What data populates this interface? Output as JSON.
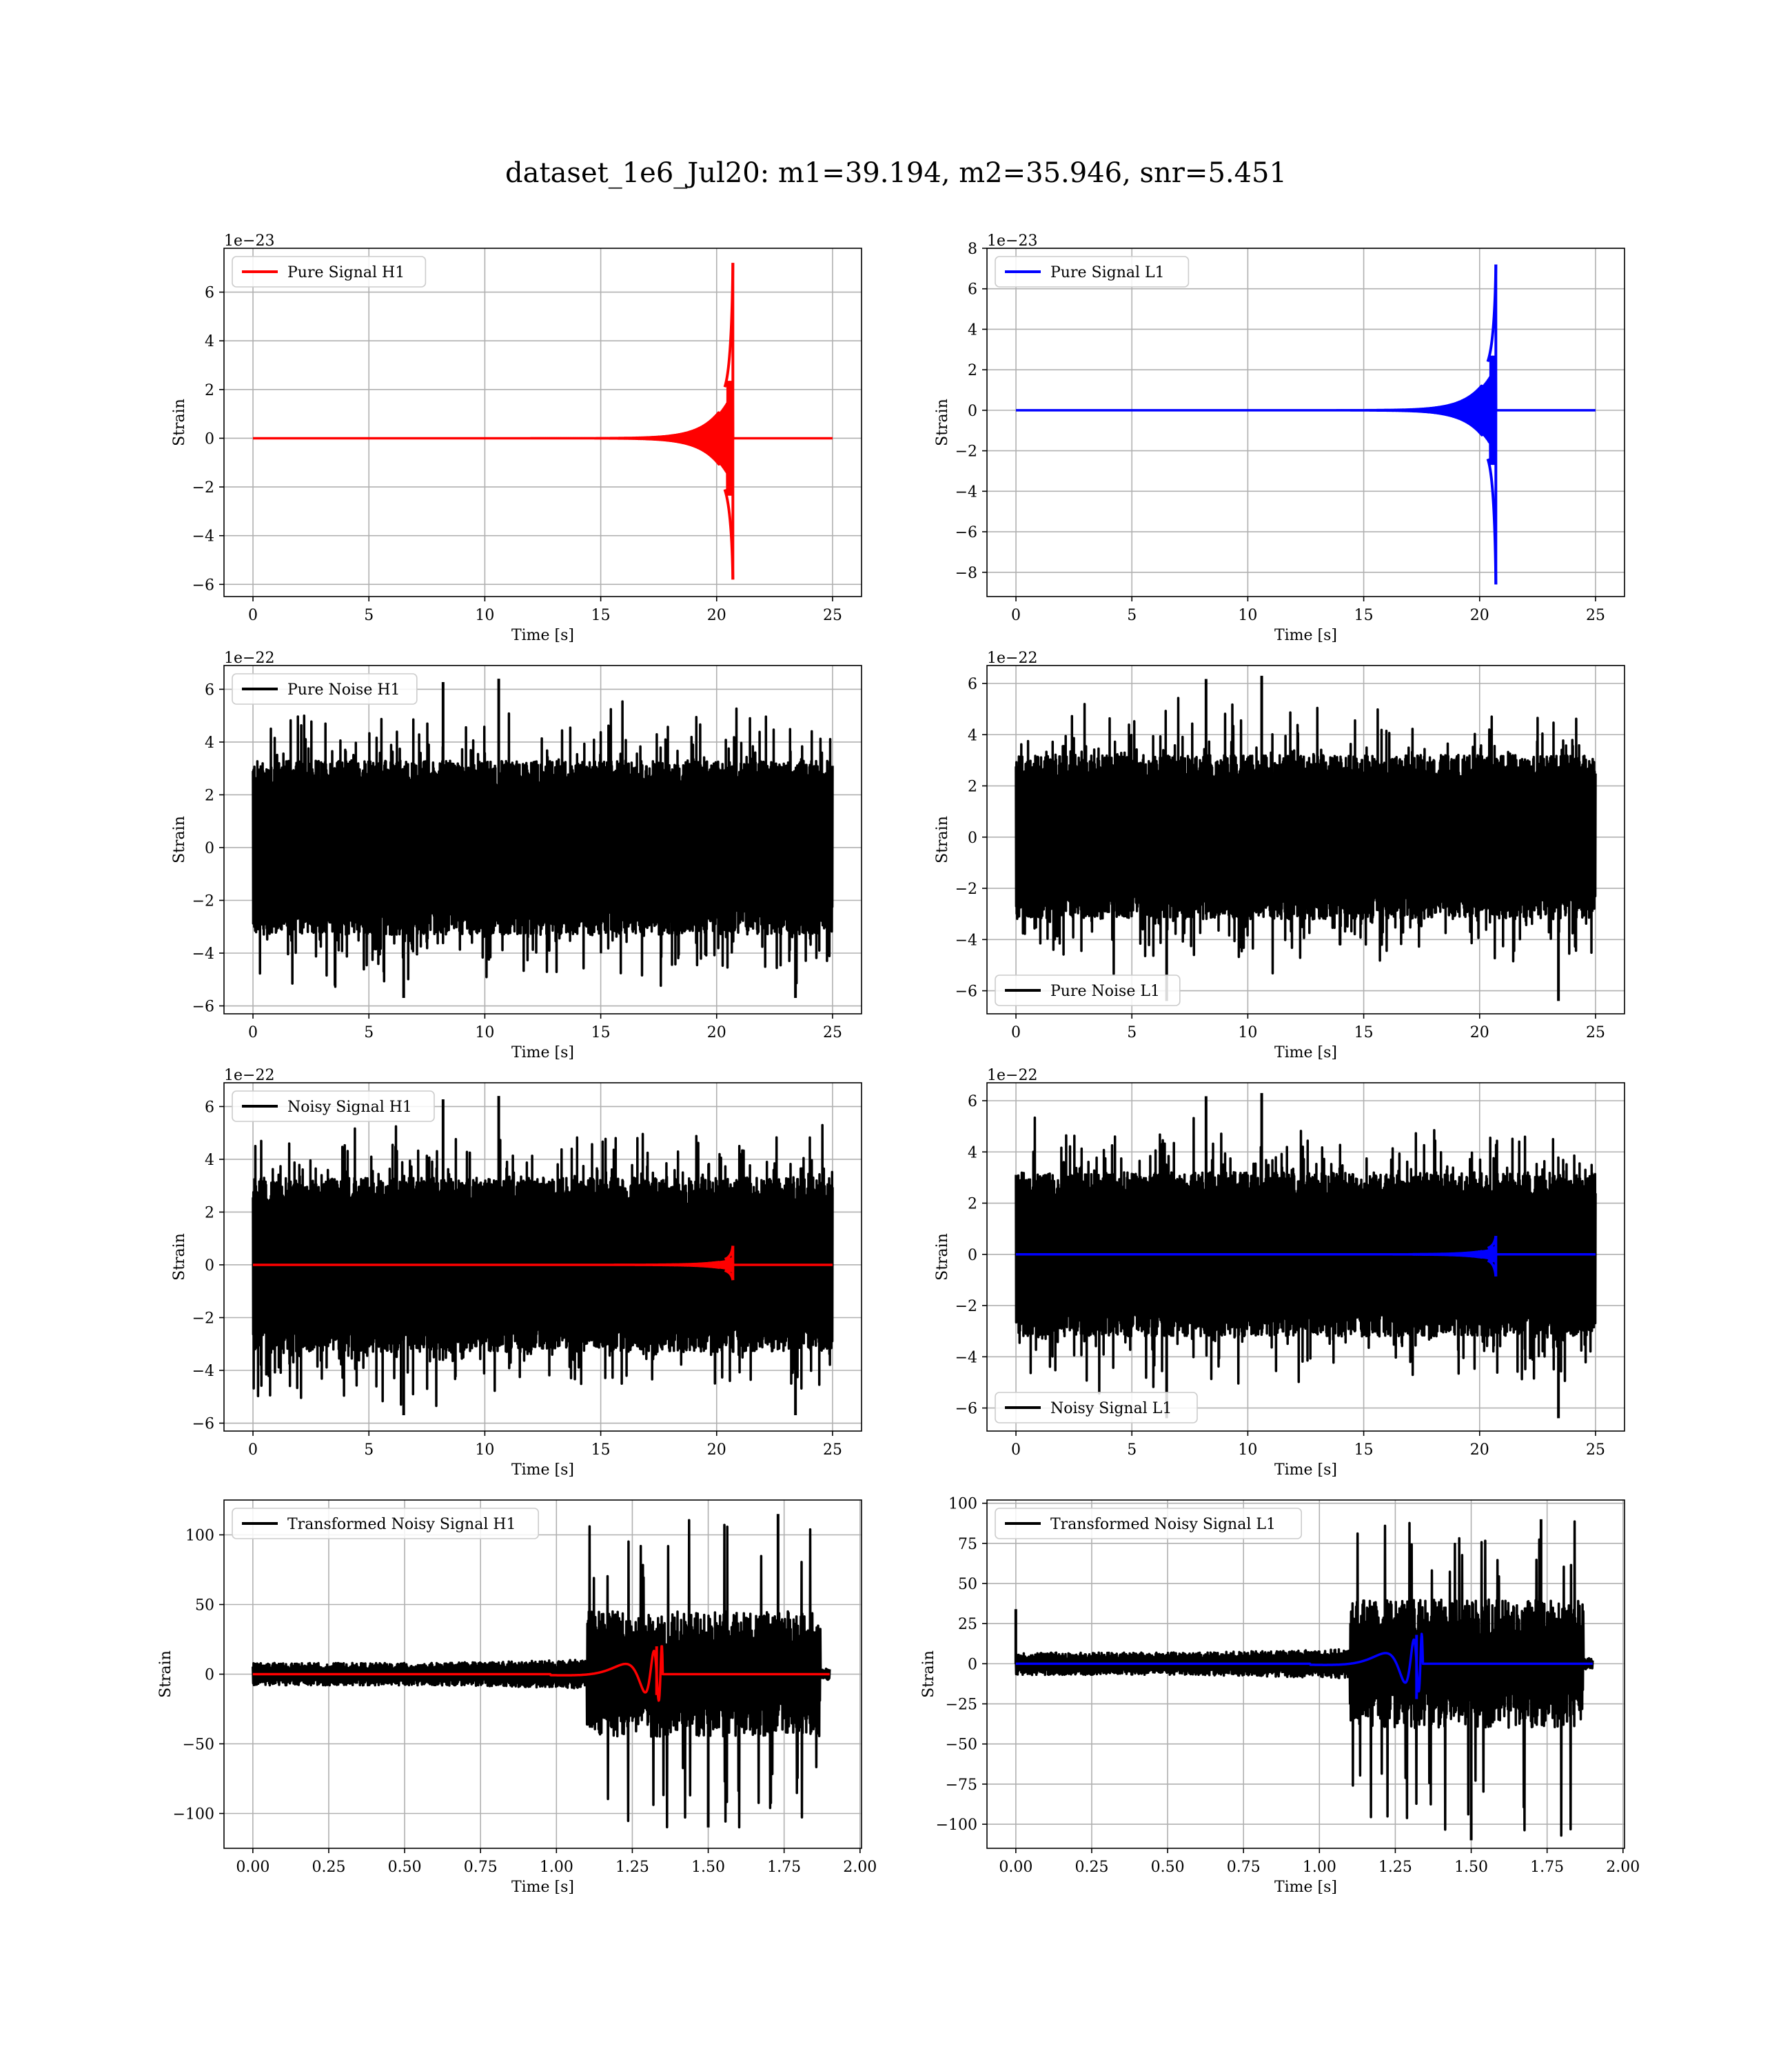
{
  "figure": {
    "title": "dataset_1e6_Jul20: m1=39.194, m2=35.946, snr=5.451"
  },
  "chart_data": [
    {
      "type": "line",
      "legend": [
        "Pure Signal H1"
      ],
      "legend_loc": "upper-left",
      "xlabel": "Time [s]",
      "ylabel": "Strain",
      "offset_text": "1e−23",
      "xlim": [
        -1.25,
        26.25
      ],
      "ylim": [
        -6.5,
        7.8
      ],
      "xticks": [
        0,
        5,
        10,
        15,
        20,
        25
      ],
      "yticks": [
        -6,
        -4,
        -2,
        0,
        2,
        4,
        6
      ],
      "xtick_labels": [
        "0",
        "5",
        "10",
        "15",
        "20",
        "25"
      ],
      "ytick_labels": [
        "−6",
        "−4",
        "−2",
        "0",
        "2",
        "4",
        "6"
      ],
      "grid": true,
      "series": [
        {
          "name": "Pure Signal H1",
          "color": "#ff0000",
          "kind": "chirp",
          "x_start": 0,
          "x_end": 25,
          "x_merge": 20.7,
          "peak_pos": 7.2,
          "peak_neg": -5.8,
          "shoulder": 2.1
        }
      ]
    },
    {
      "type": "line",
      "legend": [
        "Pure Signal L1"
      ],
      "legend_loc": "upper-left",
      "xlabel": "Time [s]",
      "ylabel": "Strain",
      "offset_text": "1e−23",
      "xlim": [
        -1.25,
        26.25
      ],
      "ylim": [
        -9.2,
        8.0
      ],
      "xticks": [
        0,
        5,
        10,
        15,
        20,
        25
      ],
      "yticks": [
        -8,
        -6,
        -4,
        -2,
        0,
        2,
        4,
        6,
        8
      ],
      "xtick_labels": [
        "0",
        "5",
        "10",
        "15",
        "20",
        "25"
      ],
      "ytick_labels": [
        "−8",
        "−6",
        "−4",
        "−2",
        "0",
        "2",
        "4",
        "6",
        "8"
      ],
      "grid": true,
      "series": [
        {
          "name": "Pure Signal L1",
          "color": "#0000ff",
          "kind": "chirp",
          "x_start": 0,
          "x_end": 25,
          "x_merge": 20.7,
          "peak_pos": 7.2,
          "peak_neg": -8.6,
          "shoulder": 2.4
        }
      ]
    },
    {
      "type": "line",
      "legend": [
        "Pure Noise H1"
      ],
      "legend_loc": "upper-left",
      "xlabel": "Time [s]",
      "ylabel": "Strain",
      "offset_text": "1e−22",
      "xlim": [
        -1.25,
        26.25
      ],
      "ylim": [
        -6.3,
        6.9
      ],
      "xticks": [
        0,
        5,
        10,
        15,
        20,
        25
      ],
      "yticks": [
        -6,
        -4,
        -2,
        0,
        2,
        4,
        6
      ],
      "xtick_labels": [
        "0",
        "5",
        "10",
        "15",
        "20",
        "25"
      ],
      "ytick_labels": [
        "−6",
        "−4",
        "−2",
        "0",
        "2",
        "4",
        "6"
      ],
      "grid": true,
      "series": [
        {
          "name": "Pure Noise H1",
          "color": "#000000",
          "kind": "noise",
          "x_start": 0,
          "x_end": 25,
          "band": 3.3,
          "spike_max": 6.4,
          "spike_min": -5.7
        }
      ]
    },
    {
      "type": "line",
      "legend": [
        "Pure Noise L1"
      ],
      "legend_loc": "lower-left",
      "xlabel": "Time [s]",
      "ylabel": "Strain",
      "offset_text": "1e−22",
      "xlim": [
        -1.25,
        26.25
      ],
      "ylim": [
        -6.9,
        6.7
      ],
      "xticks": [
        0,
        5,
        10,
        15,
        20,
        25
      ],
      "yticks": [
        -6,
        -4,
        -2,
        0,
        2,
        4,
        6
      ],
      "xtick_labels": [
        "0",
        "5",
        "10",
        "15",
        "20",
        "25"
      ],
      "ytick_labels": [
        "−6",
        "−4",
        "−2",
        "0",
        "2",
        "4",
        "6"
      ],
      "grid": true,
      "series": [
        {
          "name": "Pure Noise L1",
          "color": "#000000",
          "kind": "noise",
          "x_start": 0,
          "x_end": 25,
          "band": 3.2,
          "spike_max": 6.3,
          "spike_min": -6.4
        }
      ]
    },
    {
      "type": "line",
      "legend": [
        "Noisy Signal H1"
      ],
      "legend_loc": "upper-left",
      "xlabel": "Time [s]",
      "ylabel": "Strain",
      "offset_text": "1e−22",
      "xlim": [
        -1.25,
        26.25
      ],
      "ylim": [
        -6.3,
        6.9
      ],
      "xticks": [
        0,
        5,
        10,
        15,
        20,
        25
      ],
      "yticks": [
        -6,
        -4,
        -2,
        0,
        2,
        4,
        6
      ],
      "xtick_labels": [
        "0",
        "5",
        "10",
        "15",
        "20",
        "25"
      ],
      "ytick_labels": [
        "−6",
        "−4",
        "−2",
        "0",
        "2",
        "4",
        "6"
      ],
      "grid": true,
      "series": [
        {
          "name": "Noisy Signal H1",
          "color": "#000000",
          "kind": "noise",
          "x_start": 0,
          "x_end": 25,
          "band": 3.3,
          "spike_max": 6.4,
          "spike_min": -5.7
        },
        {
          "name": "",
          "color": "#ff0000",
          "kind": "chirp",
          "x_start": 0,
          "x_end": 25,
          "x_merge": 20.7,
          "peak_pos": 0.72,
          "peak_neg": -0.58,
          "shoulder": 0.21
        }
      ]
    },
    {
      "type": "line",
      "legend": [
        "Noisy Signal L1"
      ],
      "legend_loc": "lower-left",
      "xlabel": "Time [s]",
      "ylabel": "Strain",
      "offset_text": "1e−22",
      "xlim": [
        -1.25,
        26.25
      ],
      "ylim": [
        -6.9,
        6.7
      ],
      "xticks": [
        0,
        5,
        10,
        15,
        20,
        25
      ],
      "yticks": [
        -6,
        -4,
        -2,
        0,
        2,
        4,
        6
      ],
      "xtick_labels": [
        "0",
        "5",
        "10",
        "15",
        "20",
        "25"
      ],
      "ytick_labels": [
        "−6",
        "−4",
        "−2",
        "0",
        "2",
        "4",
        "6"
      ],
      "grid": true,
      "series": [
        {
          "name": "Noisy Signal L1",
          "color": "#000000",
          "kind": "noise",
          "x_start": 0,
          "x_end": 25,
          "band": 3.2,
          "spike_max": 6.3,
          "spike_min": -6.4
        },
        {
          "name": "",
          "color": "#0000ff",
          "kind": "chirp",
          "x_start": 0,
          "x_end": 25,
          "x_merge": 20.7,
          "peak_pos": 0.72,
          "peak_neg": -0.86,
          "shoulder": 0.24
        }
      ]
    },
    {
      "type": "line",
      "legend": [
        "Transformed Noisy Signal H1"
      ],
      "legend_loc": "upper-left",
      "xlabel": "Time [s]",
      "ylabel": "Strain",
      "offset_text": "",
      "xlim": [
        -0.095,
        2.005
      ],
      "ylim": [
        -125,
        125
      ],
      "xticks": [
        0,
        0.25,
        0.5,
        0.75,
        1.0,
        1.25,
        1.5,
        1.75,
        2.0
      ],
      "yticks": [
        -100,
        -50,
        0,
        50,
        100
      ],
      "xtick_labels": [
        "0.00",
        "0.25",
        "0.50",
        "0.75",
        "1.00",
        "1.25",
        "1.50",
        "1.75",
        "2.00"
      ],
      "ytick_labels": [
        "−100",
        "−50",
        "0",
        "50",
        "100"
      ],
      "grid": true,
      "series": [
        {
          "name": "Transformed Noisy Signal H1",
          "color": "#000000",
          "kind": "tnoise",
          "x_start": 0,
          "x_end": 1.9,
          "x_rise": 1.1,
          "x_drop": 1.87,
          "low_band": 8,
          "high_band": 45,
          "spike_max": 115,
          "spike_min": -110
        },
        {
          "name": "",
          "color": "#ff0000",
          "kind": "tchirp",
          "x_start": 0,
          "x_end": 1.9,
          "x_merge": 1.33,
          "peak_pos": 20,
          "peak_neg": -15
        }
      ]
    },
    {
      "type": "line",
      "legend": [
        "Transformed Noisy Signal L1"
      ],
      "legend_loc": "upper-left",
      "xlabel": "Time [s]",
      "ylabel": "Strain",
      "offset_text": "",
      "xlim": [
        -0.095,
        2.005
      ],
      "ylim": [
        -115,
        102
      ],
      "xticks": [
        0,
        0.25,
        0.5,
        0.75,
        1.0,
        1.25,
        1.5,
        1.75,
        2.0
      ],
      "yticks": [
        -100,
        -75,
        -50,
        -25,
        0,
        25,
        50,
        75,
        100
      ],
      "xtick_labels": [
        "0.00",
        "0.25",
        "0.50",
        "0.75",
        "1.00",
        "1.25",
        "1.50",
        "1.75",
        "2.00"
      ],
      "ytick_labels": [
        "−100",
        "−75",
        "−50",
        "−25",
        "0",
        "25",
        "50",
        "75",
        "100"
      ],
      "grid": true,
      "series": [
        {
          "name": "Transformed Noisy Signal L1",
          "color": "#000000",
          "kind": "tnoise",
          "x_start": 0,
          "x_end": 1.9,
          "x_rise": 1.1,
          "x_drop": 1.87,
          "low_band": 7,
          "high_band": 40,
          "spike_max": 90,
          "spike_min": -110,
          "start_spike": 34
        },
        {
          "name": "",
          "color": "#0000ff",
          "kind": "tchirp",
          "x_start": 0,
          "x_end": 1.9,
          "x_merge": 1.32,
          "peak_pos": 18,
          "peak_neg": -22
        }
      ]
    }
  ]
}
